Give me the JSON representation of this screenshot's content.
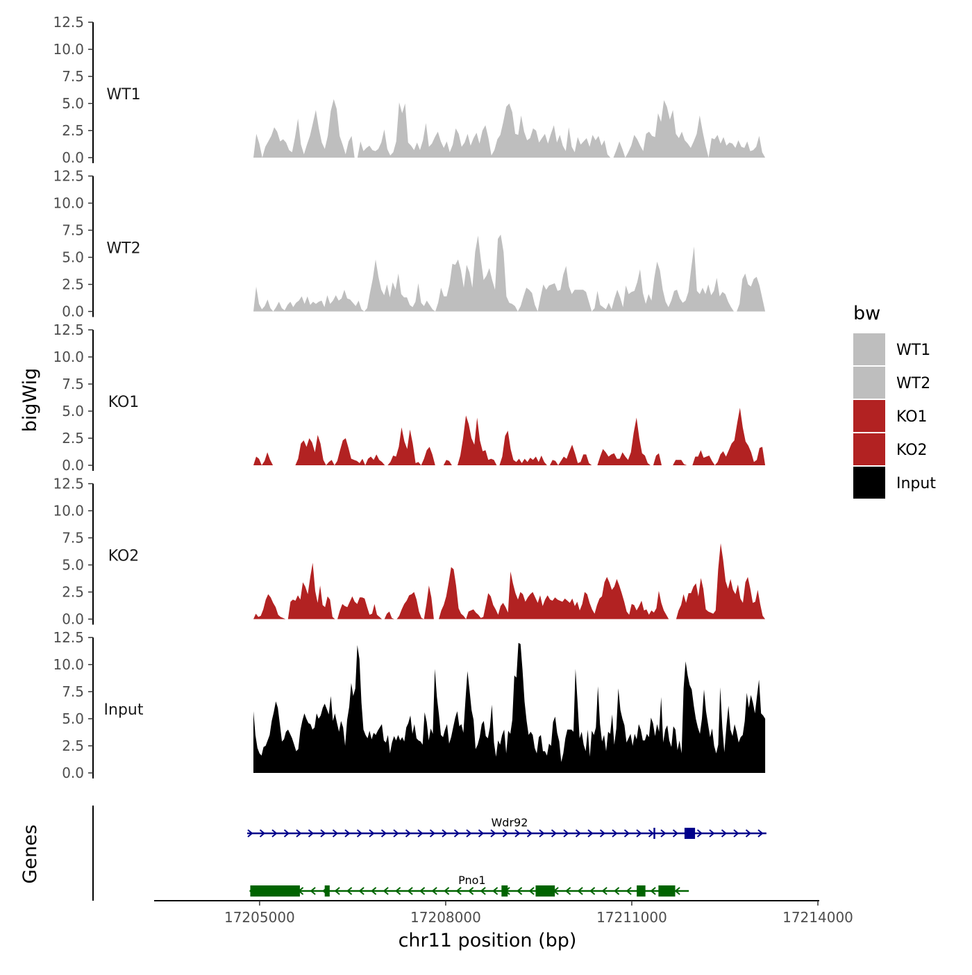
{
  "chart_data": {
    "type": "area",
    "ylabel": "bigWig",
    "xlabel": "chr11 position (bp)",
    "xlim": [
      17203300,
      17214000
    ],
    "x_ticks": [
      17205000,
      17208000,
      17211000,
      17214000
    ],
    "x_tick_labels": [
      "17205000",
      "17208000",
      "17211000",
      "17214000"
    ],
    "ylim": [
      0,
      12.5
    ],
    "y_ticks": [
      0,
      2.5,
      5,
      7.5,
      10,
      12.5
    ],
    "y_tick_labels": [
      "0.0",
      "2.5",
      "5.0",
      "7.5",
      "10.0",
      "12.5"
    ],
    "legend": {
      "title": "bw",
      "position": "right",
      "entries": [
        {
          "label": "WT1",
          "color": "#bebebe"
        },
        {
          "label": "WT2",
          "color": "#bebebe"
        },
        {
          "label": "KO1",
          "color": "#b22222"
        },
        {
          "label": "KO2",
          "color": "#b22222"
        },
        {
          "label": "Input",
          "color": "#000000"
        }
      ]
    },
    "series": [
      {
        "name": "WT1",
        "color": "#bebebe",
        "x_start": 17204900,
        "x_end": 17213150,
        "values": [
          0,
          2.2,
          1.3,
          0,
          1.0,
          1.5,
          2.0,
          2.8,
          2.4,
          1.5,
          1.7,
          1.4,
          0.7,
          0.5,
          1.9,
          3.6,
          1.2,
          0.3,
          1.2,
          2.0,
          3.2,
          4.4,
          2.7,
          1.4,
          0.8,
          2.0,
          4.3,
          5.4,
          4.5,
          2.0,
          1.2,
          0.3,
          1.5,
          2.0,
          0,
          0,
          1.5,
          0.6,
          0.9,
          1.1,
          0.7,
          0.6,
          0.8,
          1.4,
          2.6,
          0.8,
          0.2,
          0.5,
          1.5,
          5.1,
          4.1,
          5.0,
          1.4,
          1.1,
          0.7,
          1.4,
          0.7,
          1.6,
          3.2,
          1.0,
          1.3,
          1.9,
          2.4,
          1.5,
          0.9,
          1.5,
          0.5,
          1.2,
          2.7,
          2.2,
          1.0,
          1.4,
          2.2,
          1.1,
          1.8,
          2.3,
          1.3,
          2.5,
          3.0,
          1.8,
          0.2,
          0.7,
          1.7,
          2.1,
          3.3,
          4.7,
          5.0,
          4.2,
          2.2,
          2.1,
          3.9,
          2.4,
          1.6,
          1.8,
          2.7,
          2.5,
          1.4,
          1.8,
          2.2,
          1.3,
          2.2,
          3.0,
          1.4,
          2.1,
          1.1,
          0.6,
          2.8,
          1.0,
          0.5,
          1.9,
          1.2,
          1.5,
          1.8,
          1.0,
          2.1,
          1.6,
          2.0,
          1.1,
          1.6,
          0.3,
          0,
          0,
          0.7,
          1.5,
          0.8,
          0,
          0.5,
          1.1,
          2.1,
          1.7,
          1.1,
          0.6,
          2.2,
          2.4,
          2.0,
          1.9,
          4.1,
          3.3,
          5.3,
          4.7,
          3.5,
          4.4,
          2.2,
          1.8,
          2.4,
          1.6,
          1.3,
          0.9,
          1.5,
          2.2,
          3.9,
          2.4,
          1.1,
          0,
          1.8,
          1.7,
          2.1,
          1.3,
          1.9,
          1.1,
          1.4,
          1.3,
          0.9,
          1.6,
          1.0,
          0.9,
          1.5,
          0.6,
          0.7,
          1.0,
          2.0,
          0.5,
          0
        ]
      },
      {
        "name": "WT2",
        "color": "#bebebe",
        "x_start": 17204900,
        "x_end": 17213150,
        "values": [
          0,
          2.3,
          0.7,
          0.2,
          0.5,
          1.1,
          0.3,
          0,
          0.4,
          0.9,
          0.3,
          0.1,
          0.6,
          0.9,
          0.4,
          0.8,
          1.0,
          1.4,
          0.7,
          1.4,
          0.6,
          0.9,
          0.7,
          0.9,
          1.0,
          0.4,
          1.5,
          0.7,
          1.0,
          1.5,
          1.0,
          1.2,
          2.0,
          1.2,
          1.1,
          0.8,
          0.5,
          1.0,
          0.2,
          0,
          0.3,
          1.7,
          3.0,
          4.8,
          3.2,
          2.0,
          1.5,
          2.5,
          1.3,
          2.7,
          2.0,
          3.5,
          1.6,
          1.3,
          1.3,
          0.6,
          0.4,
          0.9,
          2.6,
          0.8,
          0.5,
          1.0,
          0.6,
          0.2,
          0,
          0.8,
          2.2,
          1.4,
          1.4,
          2.5,
          4.4,
          4.3,
          4.8,
          3.8,
          2.2,
          4.3,
          3.6,
          2.2,
          5.5,
          7.0,
          4.8,
          2.9,
          3.3,
          4.0,
          2.9,
          2.0,
          6.7,
          7.1,
          5.5,
          1.4,
          0.8,
          0.7,
          0.5,
          0,
          0.5,
          1.4,
          2.2,
          2.0,
          1.7,
          0.6,
          0,
          1.3,
          2.5,
          2.0,
          2.4,
          2.5,
          2.6,
          1.9,
          2.0,
          3.4,
          4.2,
          2.3,
          1.6,
          2.0,
          2.0,
          2.0,
          2.0,
          1.8,
          0.9,
          0,
          0.3,
          1.9,
          0.6,
          0.4,
          0.2,
          0.8,
          0.2,
          1.2,
          2.0,
          1.3,
          0.4,
          2.4,
          1.6,
          1.8,
          1.9,
          2.7,
          3.9,
          1.7,
          0.7,
          1.6,
          1.0,
          3.1,
          4.6,
          3.8,
          2.0,
          0.9,
          0.4,
          1.0,
          1.9,
          2.0,
          1.2,
          0.8,
          1.0,
          1.8,
          4.0,
          6.0,
          1.9,
          1.6,
          2.2,
          1.6,
          2.5,
          1.5,
          1.9,
          3.1,
          1.4,
          1.8,
          1.6,
          0.9,
          0.4,
          0,
          0,
          0.7,
          3.0,
          3.5,
          2.5,
          2.3,
          3.0,
          3.2,
          2.4,
          1.2,
          0
        ]
      },
      {
        "name": "KO1",
        "color": "#b22222",
        "x_start": 17204900,
        "x_end": 17213150,
        "values": [
          0,
          0.8,
          0.6,
          0,
          0.4,
          1.2,
          0.5,
          0,
          0,
          0,
          0,
          0,
          0,
          0,
          0,
          0,
          0.6,
          2.0,
          2.3,
          1.7,
          2.5,
          2.1,
          1.2,
          2.8,
          2.0,
          0.5,
          0,
          0.3,
          0.5,
          0,
          0.4,
          1.4,
          2.3,
          2.5,
          1.6,
          0.6,
          0.5,
          0.4,
          0.2,
          0.6,
          0,
          0.6,
          0.8,
          0.5,
          1.0,
          0.5,
          0.3,
          0,
          0,
          0.3,
          0.9,
          0.8,
          1.7,
          3.5,
          2.2,
          1.5,
          3.3,
          2.0,
          0.2,
          0.3,
          0,
          0.6,
          1.4,
          1.7,
          1.0,
          0,
          0,
          0,
          0,
          0.5,
          0.4,
          0,
          0,
          0,
          0.9,
          2.5,
          4.6,
          3.8,
          2.5,
          1.9,
          4.4,
          2.3,
          1.3,
          1.4,
          0.5,
          0.6,
          0.5,
          0,
          0,
          0.8,
          2.7,
          3.2,
          1.5,
          0.5,
          0.3,
          0.6,
          0.2,
          0.6,
          0.3,
          0.7,
          0.5,
          0.8,
          0.3,
          0.9,
          0.3,
          0,
          0,
          0.5,
          0.4,
          0,
          0.4,
          0.8,
          0.6,
          1.3,
          1.9,
          1.1,
          0.2,
          0.3,
          1.0,
          1.0,
          0.2,
          0,
          0,
          0,
          0.8,
          1.5,
          1.2,
          0.8,
          1.0,
          1.1,
          0.6,
          0.6,
          1.2,
          0.8,
          0.5,
          1.2,
          3.0,
          4.4,
          2.5,
          1.1,
          0.9,
          0.2,
          0,
          0,
          0.9,
          1.1,
          0,
          0,
          0,
          0,
          0,
          0.5,
          0.5,
          0.5,
          0.1,
          0,
          0,
          0,
          0.8,
          0.8,
          1.4,
          0.7,
          0.8,
          0.9,
          0.4,
          0,
          0.3,
          1.0,
          1.3,
          0.8,
          1.4,
          2.0,
          2.3,
          3.9,
          5.3,
          3.5,
          2.2,
          1.8,
          1.2,
          0.3,
          0.5,
          1.6,
          1.7,
          0
        ]
      },
      {
        "name": "KO2",
        "color": "#b22222",
        "x_start": 17204900,
        "x_end": 17213150,
        "values": [
          0,
          0.5,
          0.2,
          0.3,
          0.9,
          1.8,
          2.3,
          2.0,
          1.5,
          1.1,
          0.4,
          0.2,
          0.1,
          0,
          0,
          1.6,
          1.8,
          1.7,
          2.2,
          1.8,
          3.4,
          3.0,
          2.3,
          3.9,
          5.2,
          2.6,
          1.5,
          3.1,
          1.3,
          1.1,
          2.1,
          1.8,
          0.2,
          0,
          0,
          0.8,
          1.4,
          1.2,
          1.1,
          1.6,
          2.1,
          1.6,
          1.4,
          2.0,
          2.0,
          1.9,
          1.1,
          0.4,
          0.5,
          1.4,
          0.4,
          0.2,
          0,
          0,
          0.5,
          0.7,
          0.1,
          0,
          0,
          0.3,
          0.9,
          1.4,
          1.7,
          2.2,
          2.3,
          2.5,
          1.8,
          0.7,
          0.1,
          0,
          1.4,
          3.1,
          2.0,
          0,
          0,
          0,
          0.8,
          1.3,
          2.1,
          3.4,
          4.8,
          4.6,
          3.1,
          1.0,
          0.5,
          0.3,
          0,
          0.7,
          0.8,
          0.9,
          0.6,
          0.4,
          0.1,
          0.2,
          1.3,
          2.4,
          2.1,
          1.3,
          0.9,
          0.4,
          1.2,
          1.5,
          1.1,
          0.6,
          4.4,
          3.3,
          2.4,
          1.8,
          2.5,
          2.3,
          1.6,
          2.0,
          2.3,
          2.5,
          2.0,
          1.5,
          2.2,
          1.2,
          1.8,
          2.2,
          1.8,
          1.7,
          2.0,
          1.8,
          1.7,
          1.6,
          1.9,
          1.7,
          1.5,
          1.9,
          1.2,
          1.6,
          0.8,
          1.4,
          2.5,
          2.3,
          1.5,
          0.9,
          0.5,
          1.3,
          1.9,
          2.1,
          3.4,
          3.9,
          3.4,
          2.7,
          3.0,
          3.7,
          3.1,
          2.4,
          1.6,
          0.7,
          0.4,
          1.4,
          1.3,
          0.8,
          1.2,
          1.7,
          0.8,
          0.9,
          0.4,
          0.8,
          0.6,
          1.0,
          2.6,
          1.5,
          0.8,
          0.4,
          0,
          0,
          0,
          0,
          0.8,
          1.3,
          2.3,
          1.5,
          2.4,
          2.4,
          3.0,
          3.3,
          2.1,
          3.8,
          2.8,
          0.9,
          0.7,
          0.6,
          0.5,
          0.8,
          4.6,
          7.0,
          5.5,
          3.5,
          2.8,
          3.7,
          2.7,
          2.3,
          3.2,
          1.9,
          1.5,
          3.4,
          3.9,
          2.8,
          1.5,
          1.6,
          2.7,
          1.4,
          0.3,
          0
        ]
      },
      {
        "name": "Input",
        "color": "#000000",
        "x_start": 17204900,
        "x_end": 17213150,
        "values": [
          5.7,
          3.5,
          2.3,
          1.8,
          1.6,
          2.4,
          2.5,
          3.0,
          3.5,
          4.8,
          5.6,
          6.6,
          6.0,
          4.5,
          2.9,
          3.1,
          3.8,
          4.0,
          3.6,
          3.2,
          2.6,
          2.0,
          2.2,
          3.9,
          4.8,
          5.5,
          5.0,
          4.6,
          4.5,
          4.0,
          4.2,
          5.5,
          5.0,
          5.3,
          6.0,
          6.4,
          5.9,
          5.4,
          7.1,
          4.8,
          5.5,
          4.6,
          3.8,
          4.8,
          4.2,
          2.5,
          4.9,
          6.1,
          8.3,
          7.1,
          7.8,
          11.8,
          10.5,
          6.5,
          4.0,
          3.5,
          3.2,
          3.9,
          3.1,
          3.7,
          3.5,
          3.9,
          4.2,
          4.5,
          3.0,
          2.8,
          3.5,
          1.8,
          2.8,
          3.4,
          3.0,
          3.5,
          3.0,
          3.3,
          2.9,
          4.2,
          4.6,
          5.3,
          3.6,
          4.5,
          3.2,
          3.0,
          2.9,
          2.6,
          5.6,
          4.7,
          3.0,
          4.1,
          3.6,
          9.6,
          7.0,
          5.4,
          3.5,
          3.3,
          4.0,
          4.5,
          2.7,
          3.3,
          4.2,
          5.1,
          5.7,
          4.3,
          4.5,
          3.7,
          6.7,
          9.4,
          7.7,
          5.8,
          4.9,
          2.2,
          2.6,
          3.3,
          4.5,
          4.8,
          3.4,
          3.2,
          4.2,
          6.3,
          2.8,
          1.5,
          3.0,
          2.6,
          3.5,
          4.0,
          1.8,
          3.9,
          3.6,
          4.9,
          9.0,
          8.8,
          12.0,
          11.9,
          9.5,
          6.6,
          4.8,
          3.5,
          3.8,
          3.5,
          2.3,
          1.8,
          3.3,
          3.5,
          2.0,
          2.0,
          1.6,
          2.7,
          2.5,
          4.7,
          5.2,
          3.7,
          2.9,
          1.0,
          1.8,
          3.2,
          4.0,
          4.0,
          4.0,
          3.8,
          9.6,
          6.5,
          3.2,
          3.8,
          2.6,
          2.0,
          4.0,
          1.5,
          3.9,
          3.5,
          4.2,
          8.0,
          4.5,
          2.9,
          3.5,
          2.0,
          3.8,
          3.6,
          5.4,
          2.6,
          4.1,
          7.8,
          5.8,
          5.0,
          4.4,
          2.8,
          3.2,
          3.6,
          2.5,
          3.6,
          3.1,
          4.5,
          4.0,
          3.0,
          3.0,
          3.6,
          3.3,
          5.1,
          4.6,
          3.4,
          4.5,
          3.8,
          7.0,
          2.8,
          4.0,
          4.4,
          3.0,
          2.4,
          4.3,
          4.0,
          2.1,
          3.0,
          1.8,
          7.8,
          10.3,
          9.0,
          8.1,
          7.7,
          6.2,
          5.0,
          4.2,
          3.6,
          5.0,
          7.7,
          5.7,
          4.5,
          3.3,
          4.1,
          2.5,
          1.8,
          2.6,
          7.9,
          4.2,
          1.9,
          4.3,
          6.2,
          4.0,
          3.4,
          4.5,
          3.8,
          2.8,
          3.3,
          3.5,
          4.8,
          7.4,
          6.0,
          7.2,
          6.5,
          5.5,
          7.1,
          8.6,
          5.5,
          5.3,
          5.0
        ]
      }
    ],
    "genes": {
      "title": "Genes",
      "items": [
        {
          "name": "Wdr92",
          "color": "#00008b",
          "strand": "+",
          "start": 17204800,
          "end": 17213170,
          "exons": [
            [
              17211350,
              17211360
            ],
            [
              17211850,
              17212020
            ]
          ]
        },
        {
          "name": "Pno1",
          "color": "#006400",
          "strand": "-",
          "start": 17204840,
          "end": 17211920,
          "exons": [
            [
              17204850,
              17205650
            ],
            [
              17206050,
              17206130
            ],
            [
              17208900,
              17209000
            ],
            [
              17209450,
              17209760
            ],
            [
              17211080,
              17211220
            ],
            [
              17211430,
              17211700
            ]
          ]
        }
      ]
    }
  }
}
